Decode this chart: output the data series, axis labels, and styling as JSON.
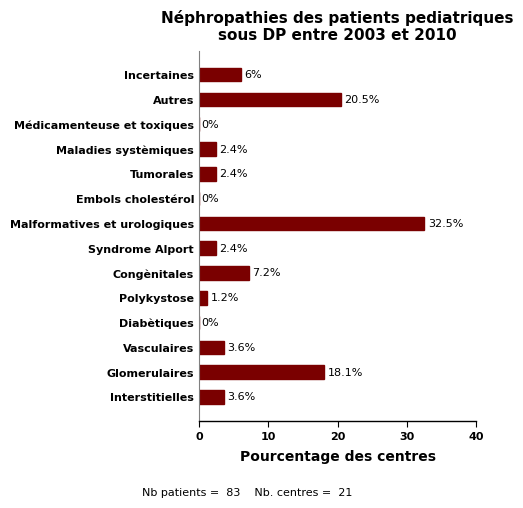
{
  "title": "Néphropathies des patients pediatriques\nsous DP entre 2003 et 2010",
  "categories": [
    "Incertaines",
    "Autres",
    "Médicamenteuse et toxiques",
    "Maladies systèmiques",
    "Tumorales",
    "Embols cholestérol",
    "Malformatives et urologiques",
    "Syndrome Alport",
    "Congènitales",
    "Polykystose",
    "Diabètiques",
    "Vasculaires",
    "Glomerulaires",
    "Interstitielles"
  ],
  "values": [
    6.0,
    20.5,
    0.0,
    2.4,
    2.4,
    0.0,
    32.5,
    2.4,
    7.2,
    1.2,
    0.0,
    3.6,
    18.1,
    3.6
  ],
  "labels": [
    "6%",
    "20.5%",
    "0%",
    "2.4%",
    "2.4%",
    "0%",
    "32.5%",
    "2.4%",
    "7.2%",
    "1.2%",
    "0%",
    "3.6%",
    "18.1%",
    "3.6%"
  ],
  "bar_color": "#7a0000",
  "xlabel": "Pourcentage des centres",
  "xlim": [
    0,
    40
  ],
  "xticks": [
    0,
    10,
    20,
    30,
    40
  ],
  "footnote": "Nb patients =  83    Nb. centres =  21",
  "title_fontsize": 11,
  "label_fontsize": 8,
  "tick_fontsize": 8,
  "xlabel_fontsize": 10,
  "footnote_fontsize": 8,
  "background_color": "#ffffff"
}
